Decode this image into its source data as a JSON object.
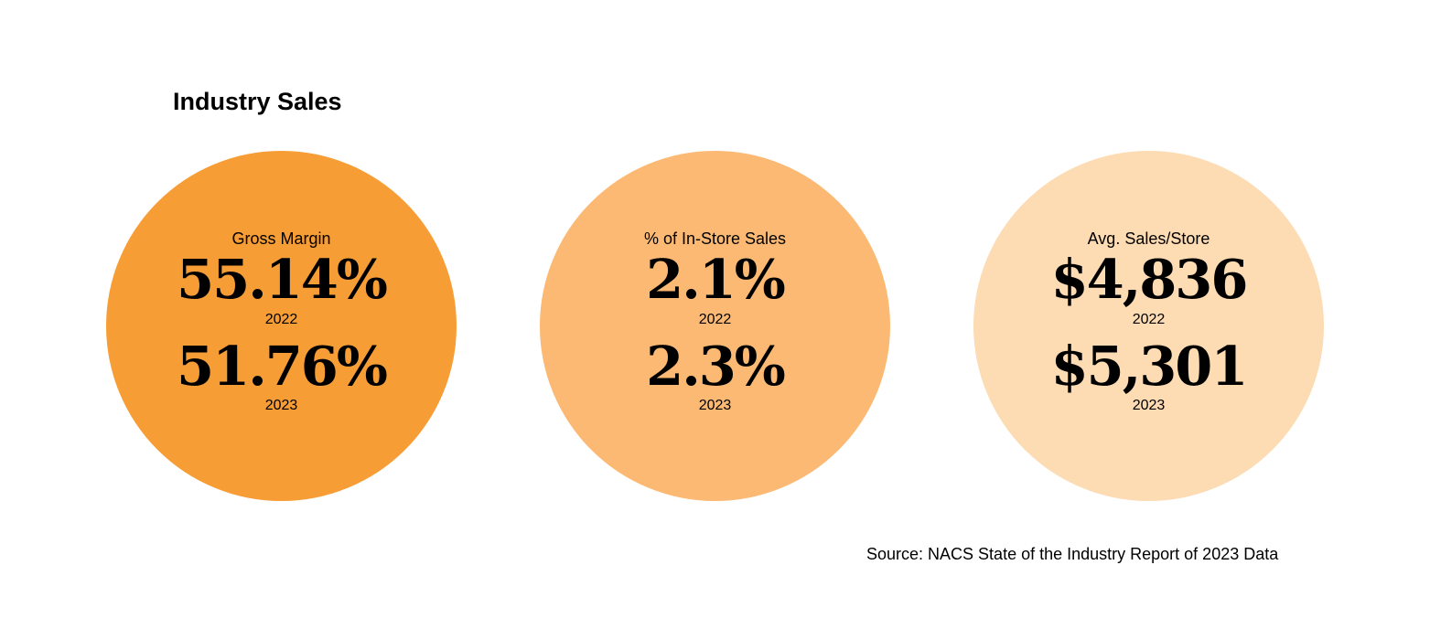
{
  "title": "Industry Sales",
  "colors": {
    "gross_margin_circle": "#F79D35",
    "in_store_sales_circle": "#FBB974",
    "avg_sales_circle": "#FDDBB3",
    "text": "#000000",
    "background": "#FFFFFF"
  },
  "stats": [
    {
      "label": "Gross Margin",
      "value_2022": "55.14%",
      "year_2022": "2022",
      "value_2023": "51.76%",
      "year_2023": "2023"
    },
    {
      "label": "% of In-Store Sales",
      "value_2022": "2.1%",
      "year_2022": "2022",
      "value_2023": "2.3%",
      "year_2023": "2023"
    },
    {
      "label": "Avg. Sales/Store",
      "value_2022": "$4,836",
      "year_2022": "2022",
      "value_2023": "$5,301",
      "year_2023": "2023"
    }
  ],
  "source": "Source: NACS State of the Industry Report of 2023 Data"
}
